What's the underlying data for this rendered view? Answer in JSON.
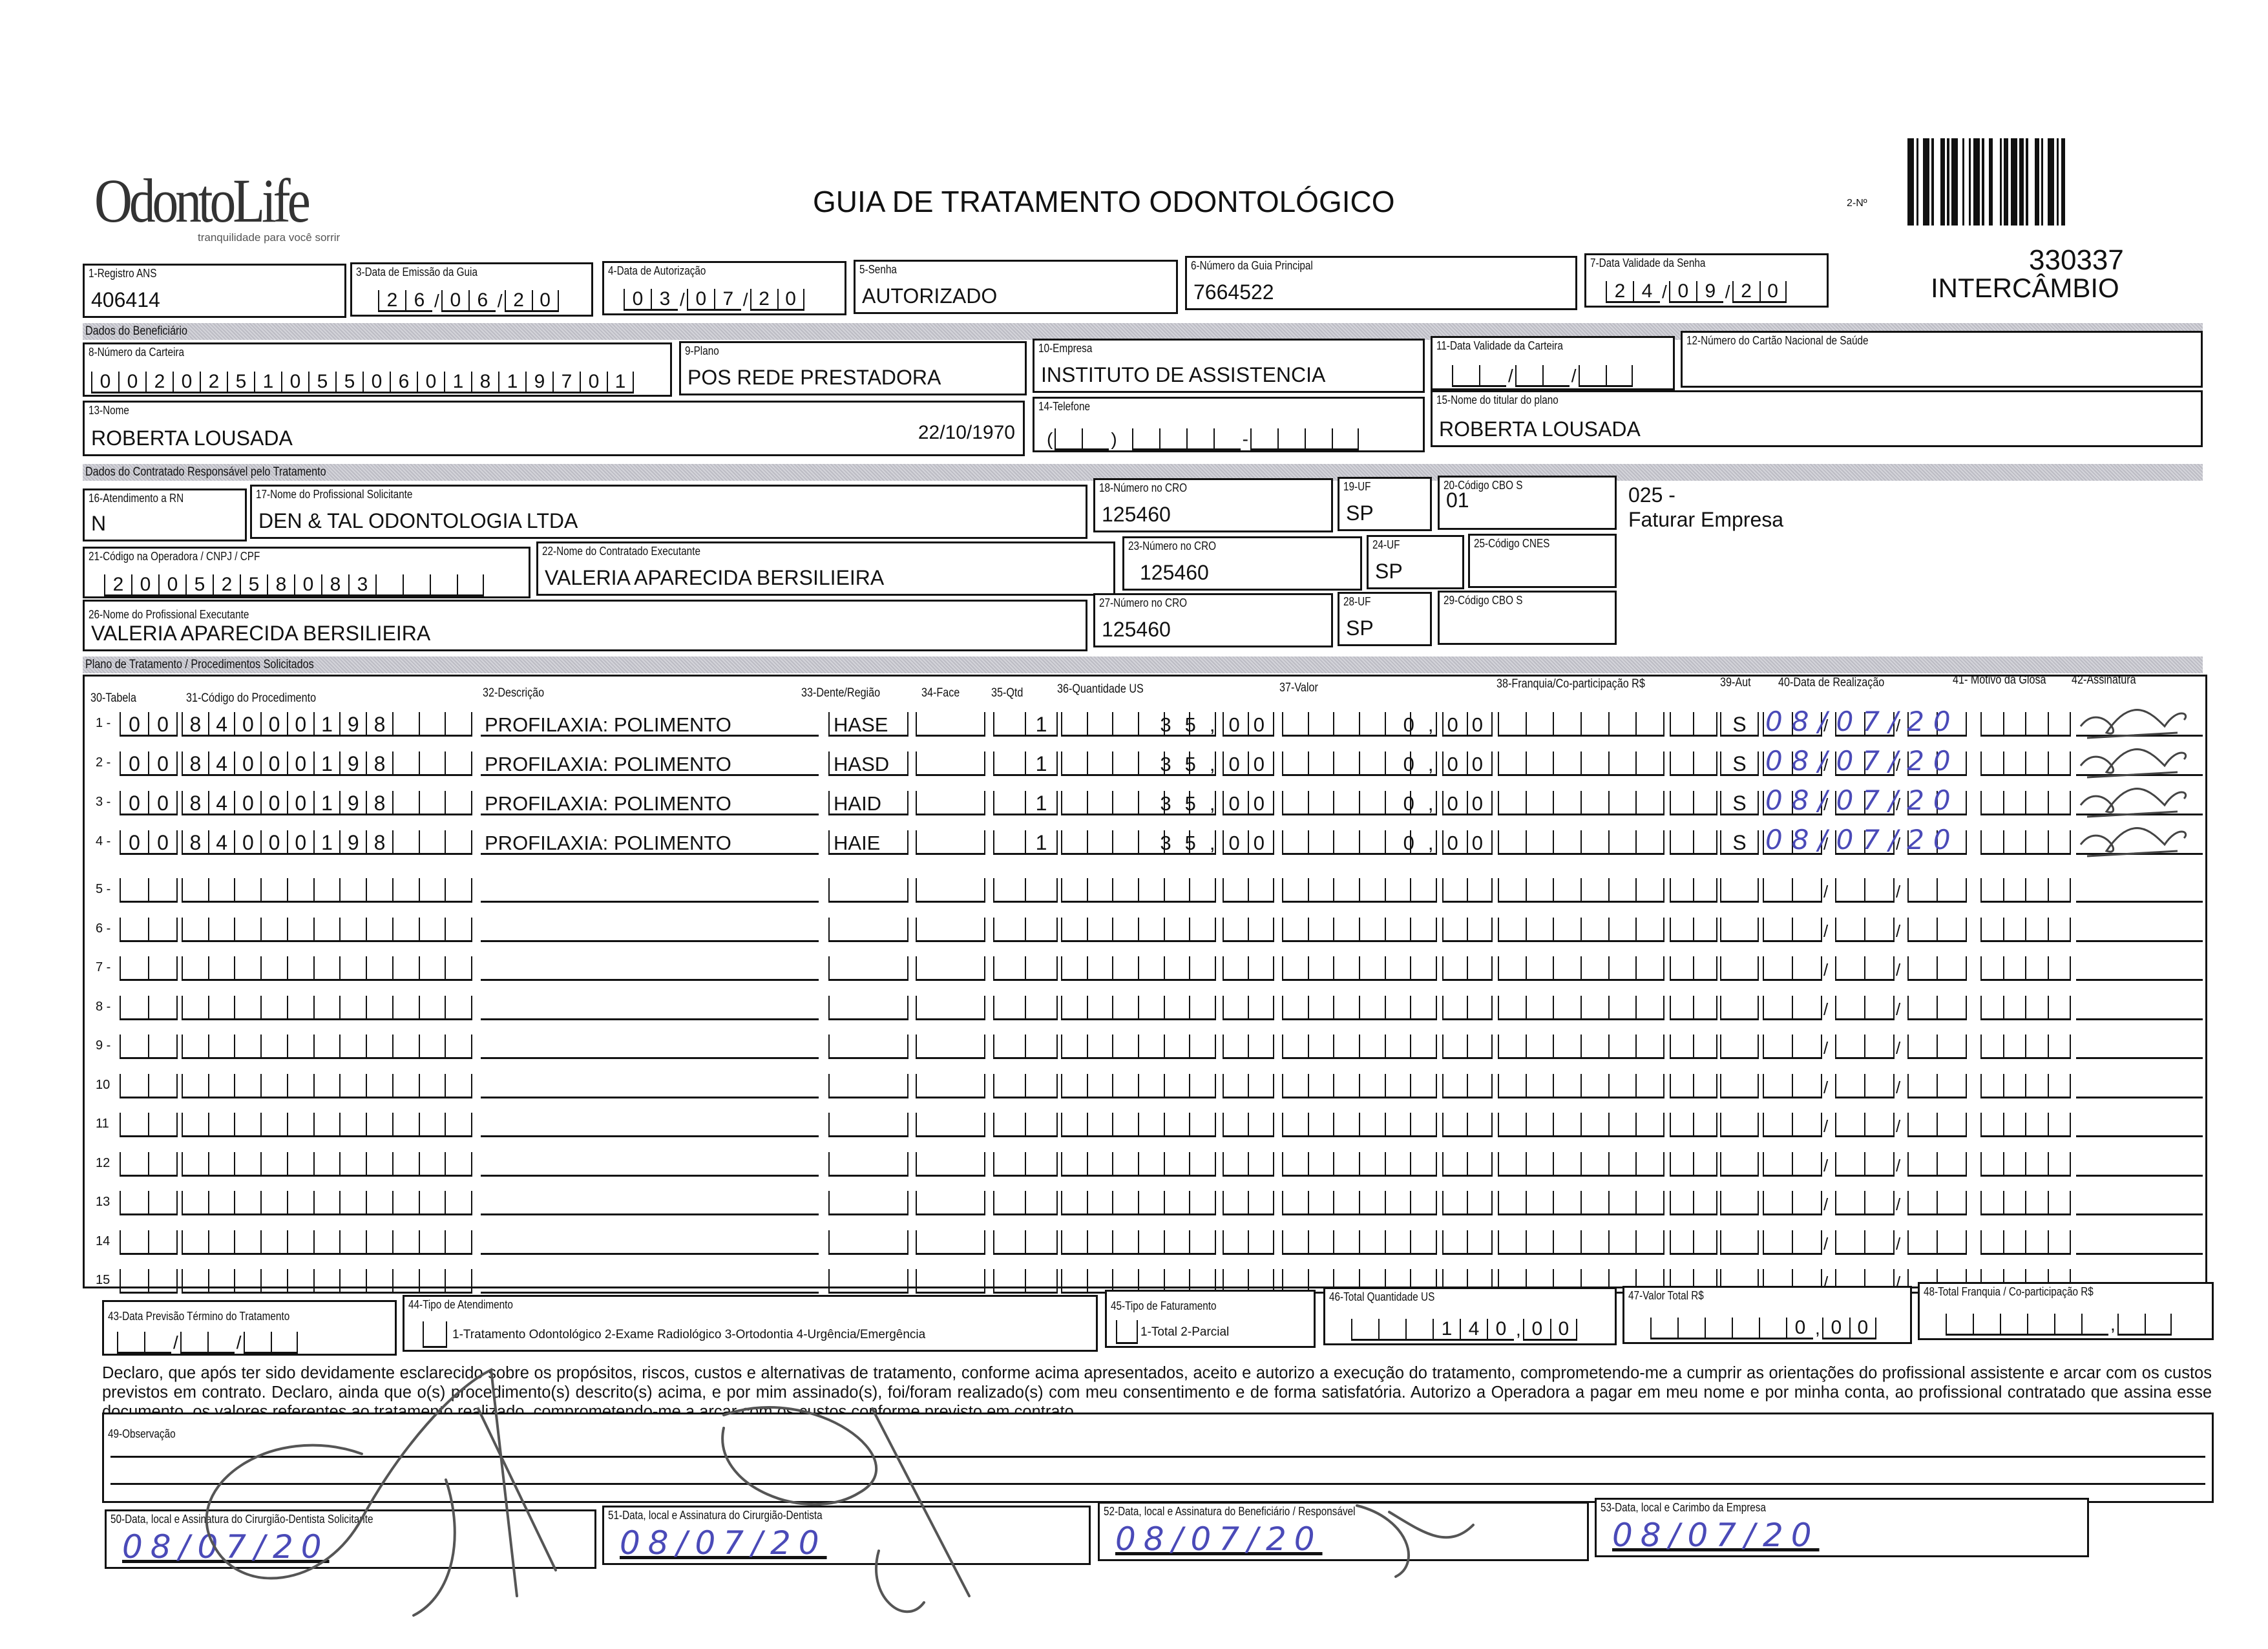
{
  "header": {
    "logo_text": "OdontoLife",
    "logo_tagline": "tranquilidade para você sorrir",
    "title": "GUIA DE TRATAMENTO ODONTOLÓGICO",
    "guide_number_label": "2-Nº",
    "guide_number": "330337",
    "guide_type": "INTERCÂMBIO"
  },
  "fields": {
    "f1": {
      "label": "1-Registro ANS",
      "value": "406414"
    },
    "f3": {
      "label": "3-Data de Emissão da Guia",
      "value": "26/06/20"
    },
    "f4": {
      "label": "4-Data de Autorização",
      "value": "03/07/20"
    },
    "f5": {
      "label": "5-Senha",
      "value": "AUTORIZADO"
    },
    "f6": {
      "label": "6-Número da Guia Principal",
      "value": "7664522"
    },
    "f7": {
      "label": "7-Data Validade da Senha",
      "value": "24/09/20"
    }
  },
  "beneficiary": {
    "section_title": "Dados do Beneficiário",
    "f8": {
      "label": "8-Número da Carteira",
      "value": "00202510550601819701"
    },
    "f9": {
      "label": "9-Plano",
      "value": "POS REDE PRESTADORA"
    },
    "f10": {
      "label": "10-Empresa",
      "value": "INSTITUTO DE ASSISTENCIA"
    },
    "f11": {
      "label": "11-Data Validade da Carteira",
      "value": ""
    },
    "f12": {
      "label": "12-Número do Cartão Nacional de Saúde",
      "value": ""
    },
    "f13": {
      "label": "13-Nome",
      "value": "ROBERTA LOUSADA",
      "birth_date": "22/10/1970"
    },
    "f14": {
      "label": "14-Telefone",
      "value": ""
    },
    "f15": {
      "label": "15-Nome do titular do plano",
      "value": "ROBERTA LOUSADA"
    }
  },
  "contractor": {
    "section_title": "Dados do Contratado Responsável pelo Tratamento",
    "f16": {
      "label": "16-Atendimento a RN",
      "value": "N"
    },
    "f17": {
      "label": "17-Nome do Profissional Solicitante",
      "value": "DEN & TAL ODONTOLOGIA LTDA"
    },
    "f18": {
      "label": "18-Número no CRO",
      "value": "125460"
    },
    "f19": {
      "label": "19-UF",
      "value": "SP"
    },
    "f20": {
      "label": "20-Código CBO S",
      "value": "01"
    },
    "note_code": "025 -",
    "note_text": "Faturar Empresa",
    "f21": {
      "label": "21-Código na Operadora / CNPJ / CPF",
      "value": "2005258083"
    },
    "f22": {
      "label": "22-Nome do Contratado Executante",
      "value": "VALERIA APARECIDA BERSILIEIRA"
    },
    "f23": {
      "label": "23-Número no CRO",
      "value": "125460"
    },
    "f24": {
      "label": "24-UF",
      "value": "SP"
    },
    "f25": {
      "label": "25-Código CNES",
      "value": ""
    },
    "f26": {
      "label": "26-Nome do Profissional Executante",
      "value": "VALERIA APARECIDA BERSILIEIRA"
    },
    "f27": {
      "label": "27-Número no CRO",
      "value": "125460"
    },
    "f28": {
      "label": "28-UF",
      "value": "SP"
    },
    "f29": {
      "label": "29-Código CBO S",
      "value": ""
    }
  },
  "plan": {
    "section_title": "Plano de Tratamento / Procedimentos Solicitados",
    "columns": [
      "30-Tabela",
      "31-Código do Procedimento",
      "32-Descrição",
      "33-Dente/Região",
      "34-Face",
      "35-Qtd",
      "36-Quantidade US",
      "37-Valor",
      "38-Franquia/Co-participação R$",
      "39-Aut",
      "40-Data de Realização",
      "41- Motivo da Glosa",
      "42-Assinatura"
    ],
    "rows": [
      {
        "num": "1 -",
        "tabela": "00",
        "codigo": "84000198",
        "descricao": "PROFILAXIA: POLIMENTO",
        "dente": "HASE",
        "face": "",
        "qtd": "1",
        "qtd_us": "35,00",
        "valor": "0,00",
        "franquia": "",
        "aut": "S",
        "data": "08/07/20",
        "glosa": ""
      },
      {
        "num": "2 -",
        "tabela": "00",
        "codigo": "84000198",
        "descricao": "PROFILAXIA: POLIMENTO",
        "dente": "HASD",
        "face": "",
        "qtd": "1",
        "qtd_us": "35,00",
        "valor": "0,00",
        "franquia": "",
        "aut": "S",
        "data": "08/07/20",
        "glosa": ""
      },
      {
        "num": "3 -",
        "tabela": "00",
        "codigo": "84000198",
        "descricao": "PROFILAXIA: POLIMENTO",
        "dente": "HAID",
        "face": "",
        "qtd": "1",
        "qtd_us": "35,00",
        "valor": "0,00",
        "franquia": "",
        "aut": "S",
        "data": "08/07/20",
        "glosa": ""
      },
      {
        "num": "4 -",
        "tabela": "00",
        "codigo": "84000198",
        "descricao": "PROFILAXIA: POLIMENTO",
        "dente": "HAIE",
        "face": "",
        "qtd": "1",
        "qtd_us": "35,00",
        "valor": "0,00",
        "franquia": "",
        "aut": "S",
        "data": "08/07/20",
        "glosa": ""
      },
      {
        "num": "5 -"
      },
      {
        "num": "6 -"
      },
      {
        "num": "7 -"
      },
      {
        "num": "8 -"
      },
      {
        "num": "9 -"
      },
      {
        "num": "10"
      },
      {
        "num": "11"
      },
      {
        "num": "12"
      },
      {
        "num": "13"
      },
      {
        "num": "14"
      },
      {
        "num": "15"
      }
    ]
  },
  "totals": {
    "f43": {
      "label": "43-Data Previsão Término do Tratamento",
      "value": ""
    },
    "f44": {
      "label": "44-Tipo de Atendimento",
      "options": "1-Tratamento Odontológico  2-Exame Radiológico  3-Ortodontia  4-Urgência/Emergência",
      "value": ""
    },
    "f45": {
      "label": "45-Tipo de Faturamento",
      "options": "1-Total  2-Parcial",
      "value": ""
    },
    "f46": {
      "label": "46-Total Quantidade US",
      "value": "140,00"
    },
    "f47": {
      "label": "47-Valor Total R$",
      "value": "0,00"
    },
    "f48": {
      "label": "48-Total Franquia / Co-participação R$",
      "value": ""
    }
  },
  "declaration": "Declaro, que após ter sido devidamente esclarecido sobre os propósitos, riscos, custos e alternativas de tratamento, conforme acima apresentados, aceito e autorizo a execução do tratamento, comprometendo-me a cumprir as orientações do profissional assistente e arcar com os custos previstos em contrato. Declaro, ainda que o(s) procedimento(s) descrito(s) acima, e por mim assinado(s), foi/foram realizado(s) com meu consentimento e de forma satisfatória. Autorizo a Operadora a pagar em meu nome e por minha conta, ao profissional contratado que assina esse documento, os valores referentes ao tratamento realizado, comprometendo-me a arcar com os custos conforme previsto em contrato.",
  "observation": {
    "label": "49-Observação",
    "value": ""
  },
  "signatures": [
    {
      "label": "50-Data, local e Assinatura do Cirurgião-Dentista Solicitante",
      "date": "08/07/20"
    },
    {
      "label": "51-Data, local e Assinatura do Cirurgião-Dentista",
      "date": "08/07/20"
    },
    {
      "label": "52-Data, local e Assinatura do Beneficiário / Responsável",
      "date": "08/07/20"
    },
    {
      "label": "53-Data, local e Carimbo da Empresa",
      "date": "08/07/20"
    }
  ],
  "colors": {
    "ink": "#111111",
    "pen_blue": "#4a4ab8",
    "signature_gray": "#555555",
    "section_bar": "#c8c8ce"
  }
}
